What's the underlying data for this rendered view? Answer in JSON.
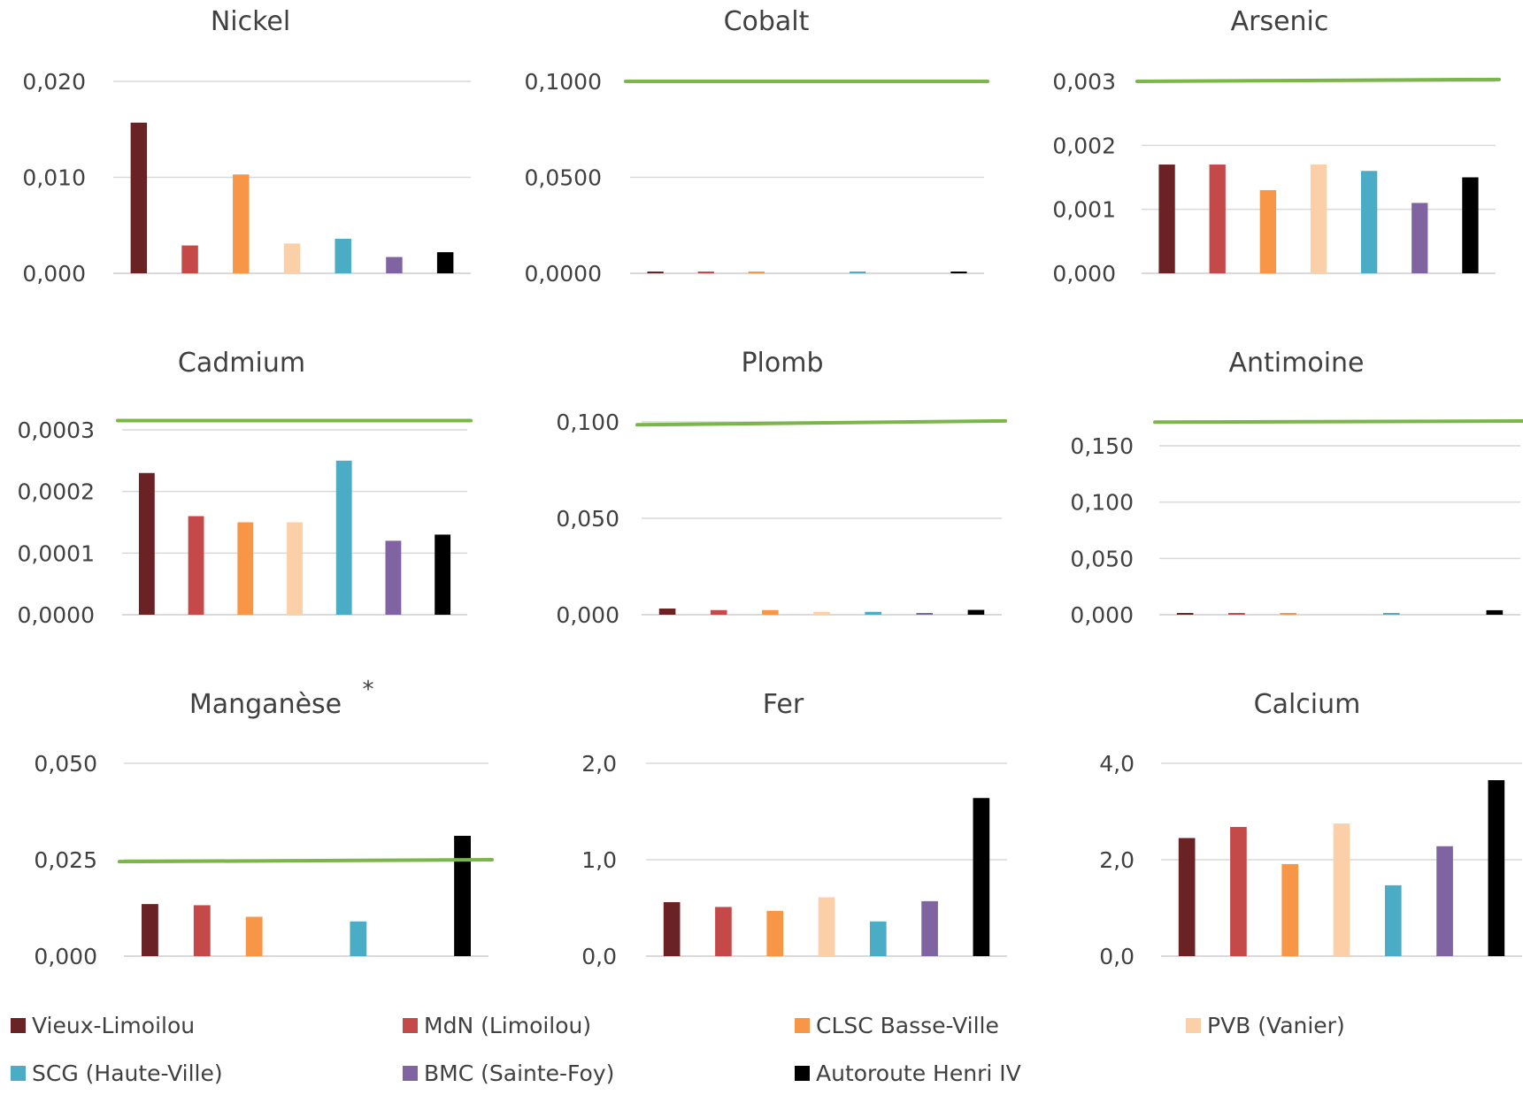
{
  "colors": {
    "Vieux-Limoilou": "#6b2224",
    "MdN (Limoilou)": "#c6494a",
    "CLSC Basse-Ville": "#f79646",
    "PVB (Vanier)": "#fbcfa8",
    "SCG (Haute-Ville)": "#4bacc6",
    "BMC (Sainte-Foy)": "#8064a2",
    "Autoroute Henri IV": "#000000",
    "threshold": "#7ab648",
    "grid": "#d9d9d9"
  },
  "legend": {
    "items": [
      {
        "label": "Vieux-Limoilou",
        "color": "#6b2224"
      },
      {
        "label": "MdN (Limoilou)",
        "color": "#c6494a"
      },
      {
        "label": "CLSC Basse-Ville",
        "color": "#f79646"
      },
      {
        "label": "PVB (Vanier)",
        "color": "#fbcfa8"
      },
      {
        "label": "SCG (Haute-Ville)",
        "color": "#4bacc6"
      },
      {
        "label": "BMC (Sainte-Foy)",
        "color": "#8064a2"
      },
      {
        "label": "Autoroute Henri IV",
        "color": "#000000"
      }
    ]
  },
  "chart_data": [
    {
      "type": "bar",
      "title": "Nickel",
      "categories": [
        "Vieux-Limoilou",
        "MdN (Limoilou)",
        "CLSC Basse-Ville",
        "PVB (Vanier)",
        "SCG (Haute-Ville)",
        "BMC (Sainte-Foy)",
        "Autoroute Henri IV"
      ],
      "values": [
        0.0157,
        0.0029,
        0.0103,
        0.0031,
        0.0036,
        0.0017,
        0.0022
      ],
      "ylim": [
        0,
        0.02
      ],
      "yticks": [
        "0,000",
        "0,010",
        "0,020"
      ],
      "ytick_values": [
        0,
        0.01,
        0.02
      ],
      "threshold": null,
      "grid": true
    },
    {
      "type": "bar",
      "title": "Cobalt",
      "categories": [
        "Vieux-Limoilou",
        "MdN (Limoilou)",
        "CLSC Basse-Ville",
        "PVB (Vanier)",
        "SCG (Haute-Ville)",
        "BMC (Sainte-Foy)",
        "Autoroute Henri IV"
      ],
      "values": [
        0.0003,
        0.0003,
        0.0003,
        0,
        0.0002,
        0,
        0.0003
      ],
      "ylim": [
        0,
        0.1
      ],
      "yticks": [
        "0,0000",
        "0,0500",
        "0,1000"
      ],
      "ytick_values": [
        0,
        0.05,
        0.1
      ],
      "threshold": [
        0.1,
        0.1
      ],
      "grid": true
    },
    {
      "type": "bar",
      "title": "Arsenic",
      "categories": [
        "Vieux-Limoilou",
        "MdN (Limoilou)",
        "CLSC Basse-Ville",
        "PVB (Vanier)",
        "SCG (Haute-Ville)",
        "BMC (Sainte-Foy)",
        "Autoroute Henri IV"
      ],
      "values": [
        0.0017,
        0.0017,
        0.0013,
        0.0017,
        0.0016,
        0.0011,
        0.0015
      ],
      "ylim": [
        0,
        0.003
      ],
      "yticks": [
        "0,000",
        "0,001",
        "0,002",
        "0,003"
      ],
      "ytick_values": [
        0,
        0.001,
        0.002,
        0.003
      ],
      "threshold": [
        0.003,
        0.00303
      ],
      "grid": true
    },
    {
      "type": "bar",
      "title": "Cadmium",
      "categories": [
        "Vieux-Limoilou",
        "MdN (Limoilou)",
        "CLSC Basse-Ville",
        "PVB (Vanier)",
        "SCG (Haute-Ville)",
        "BMC (Sainte-Foy)",
        "Autoroute Henri IV"
      ],
      "values": [
        0.00023,
        0.00016,
        0.00015,
        0.00015,
        0.00025,
        0.00012,
        0.00013
      ],
      "ylim": [
        0,
        0.0003
      ],
      "yticks": [
        "0,0000",
        "0,0001",
        "0,0002",
        "0,0003"
      ],
      "ytick_values": [
        0,
        0.0001,
        0.0002,
        0.0003
      ],
      "threshold": [
        0.000315,
        0.000315
      ],
      "grid": true
    },
    {
      "type": "bar",
      "title": "Plomb",
      "categories": [
        "Vieux-Limoilou",
        "MdN (Limoilou)",
        "CLSC Basse-Ville",
        "PVB (Vanier)",
        "SCG (Haute-Ville)",
        "BMC (Sainte-Foy)",
        "Autoroute Henri IV"
      ],
      "values": [
        0.0032,
        0.0024,
        0.0024,
        0.0015,
        0.0015,
        0.0009,
        0.0025
      ],
      "ylim": [
        0,
        0.1
      ],
      "yticks": [
        "0,000",
        "0,050",
        "0,100"
      ],
      "ytick_values": [
        0,
        0.05,
        0.1
      ],
      "threshold": [
        0.0985,
        0.1005
      ],
      "grid": true
    },
    {
      "type": "bar",
      "title": "Antimoine",
      "categories": [
        "Vieux-Limoilou",
        "MdN (Limoilou)",
        "CLSC Basse-Ville",
        "PVB (Vanier)",
        "SCG (Haute-Ville)",
        "BMC (Sainte-Foy)",
        "Autoroute Henri IV"
      ],
      "values": [
        0.0015,
        0.0015,
        0.0015,
        0,
        0.0015,
        0,
        0.004
      ],
      "ylim": [
        0,
        0.15
      ],
      "yticks": [
        "0,000",
        "0,050",
        "0,100",
        "0,150"
      ],
      "ytick_values": [
        0,
        0.05,
        0.1,
        0.15
      ],
      "threshold": [
        0.171,
        0.172
      ],
      "grid": true
    },
    {
      "type": "bar",
      "title": "Manganèse",
      "title_mark": "*",
      "categories": [
        "Vieux-Limoilou",
        "MdN (Limoilou)",
        "CLSC Basse-Ville",
        "PVB (Vanier)",
        "SCG (Haute-Ville)",
        "BMC (Sainte-Foy)",
        "Autoroute Henri IV"
      ],
      "values": [
        0.0135,
        0.0132,
        0.0102,
        0,
        0.009,
        0,
        0.0312
      ],
      "ylim": [
        0,
        0.05
      ],
      "yticks": [
        "0,000",
        "0,025",
        "0,050"
      ],
      "ytick_values": [
        0,
        0.025,
        0.05
      ],
      "threshold": [
        0.0245,
        0.025
      ],
      "grid": true
    },
    {
      "type": "bar",
      "title": "Fer",
      "categories": [
        "Vieux-Limoilou",
        "MdN (Limoilou)",
        "CLSC Basse-Ville",
        "PVB (Vanier)",
        "SCG (Haute-Ville)",
        "BMC (Sainte-Foy)",
        "Autoroute Henri IV"
      ],
      "values": [
        0.56,
        0.51,
        0.47,
        0.61,
        0.36,
        0.57,
        1.64
      ],
      "ylim": [
        0,
        2.0
      ],
      "yticks": [
        "0,0",
        "1,0",
        "2,0"
      ],
      "ytick_values": [
        0,
        1.0,
        2.0
      ],
      "threshold": null,
      "grid": true
    },
    {
      "type": "bar",
      "title": "Calcium",
      "categories": [
        "Vieux-Limoilou",
        "MdN (Limoilou)",
        "CLSC Basse-Ville",
        "PVB (Vanier)",
        "SCG (Haute-Ville)",
        "BMC (Sainte-Foy)",
        "Autoroute Henri IV"
      ],
      "values": [
        2.45,
        2.68,
        1.91,
        2.75,
        1.47,
        2.28,
        3.65
      ],
      "ylim": [
        0,
        4.0
      ],
      "yticks": [
        "0,0",
        "2,0",
        "4,0"
      ],
      "ytick_values": [
        0,
        2.0,
        4.0
      ],
      "threshold": null,
      "grid": true
    }
  ]
}
